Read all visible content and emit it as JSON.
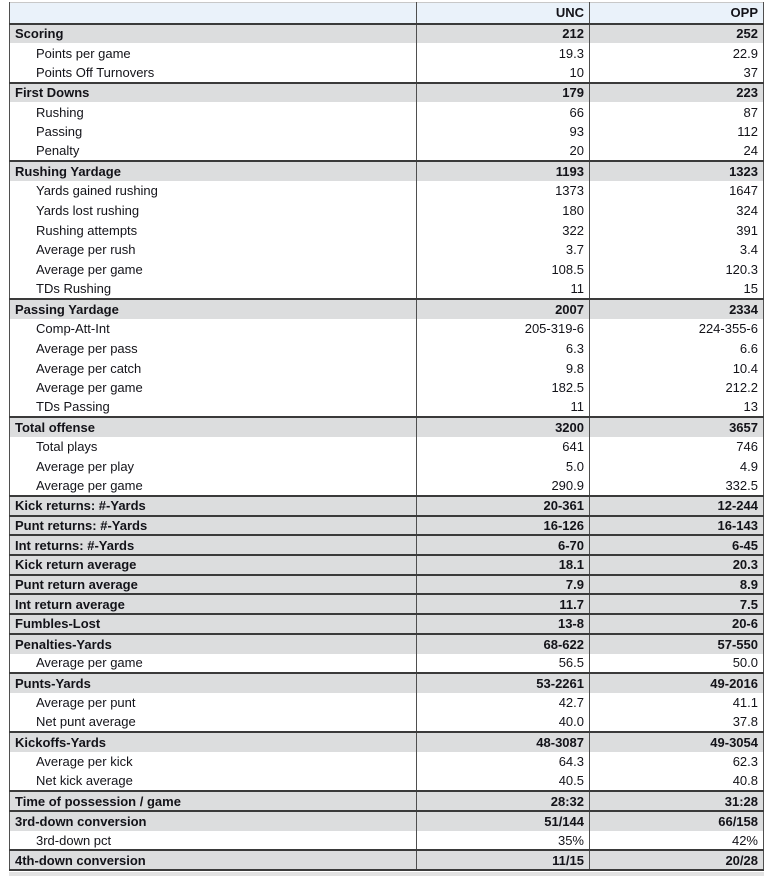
{
  "colors": {
    "header_bg": "#eaf2fa",
    "section_bg": "#dcddde",
    "row_bg": "#ffffff",
    "border_dark": "#3a3a3a",
    "border_mid": "#4f4f4f",
    "text_color": "#131319"
  },
  "chart_data": {
    "type": "table",
    "columns": [
      "",
      "UNC",
      "OPP"
    ],
    "rows": [
      {
        "label": "Scoring",
        "unc": "212",
        "opp": "252",
        "row": "section"
      },
      {
        "label": "Points per game",
        "unc": "19.3",
        "opp": "22.9",
        "row": "sub"
      },
      {
        "label": "Points Off Turnovers",
        "unc": "10",
        "opp": "37",
        "row": "sub"
      },
      {
        "label": "First Downs",
        "unc": "179",
        "opp": "223",
        "row": "section"
      },
      {
        "label": "Rushing",
        "unc": "66",
        "opp": "87",
        "row": "sub"
      },
      {
        "label": "Passing",
        "unc": "93",
        "opp": "112",
        "row": "sub"
      },
      {
        "label": "Penalty",
        "unc": "20",
        "opp": "24",
        "row": "sub"
      },
      {
        "label": "Rushing Yardage",
        "unc": "1193",
        "opp": "1323",
        "row": "section"
      },
      {
        "label": "Yards gained rushing",
        "unc": "1373",
        "opp": "1647",
        "row": "sub"
      },
      {
        "label": "Yards lost rushing",
        "unc": "180",
        "opp": "324",
        "row": "sub"
      },
      {
        "label": "Rushing attempts",
        "unc": "322",
        "opp": "391",
        "row": "sub"
      },
      {
        "label": "Average per rush",
        "unc": "3.7",
        "opp": "3.4",
        "row": "sub"
      },
      {
        "label": "Average per game",
        "unc": "108.5",
        "opp": "120.3",
        "row": "sub"
      },
      {
        "label": "TDs Rushing",
        "unc": "11",
        "opp": "15",
        "row": "sub"
      },
      {
        "label": "Passing Yardage",
        "unc": "2007",
        "opp": "2334",
        "row": "section"
      },
      {
        "label": "Comp-Att-Int",
        "unc": "205-319-6",
        "opp": "224-355-6",
        "row": "sub"
      },
      {
        "label": "Average per pass",
        "unc": "6.3",
        "opp": "6.6",
        "row": "sub"
      },
      {
        "label": "Average per catch",
        "unc": "9.8",
        "opp": "10.4",
        "row": "sub"
      },
      {
        "label": "Average per game",
        "unc": "182.5",
        "opp": "212.2",
        "row": "sub"
      },
      {
        "label": "TDs Passing",
        "unc": "11",
        "opp": "13",
        "row": "sub"
      },
      {
        "label": "Total offense",
        "unc": "3200",
        "opp": "3657",
        "row": "section"
      },
      {
        "label": "Total plays",
        "unc": "641",
        "opp": "746",
        "row": "sub"
      },
      {
        "label": "Average per play",
        "unc": "5.0",
        "opp": "4.9",
        "row": "sub"
      },
      {
        "label": "Average per game",
        "unc": "290.9",
        "opp": "332.5",
        "row": "sub"
      },
      {
        "label": "Kick returns: #-Yards",
        "unc": "20-361",
        "opp": "12-244",
        "row": "section"
      },
      {
        "label": "Punt returns: #-Yards",
        "unc": "16-126",
        "opp": "16-143",
        "row": "section"
      },
      {
        "label": "Int returns: #-Yards",
        "unc": "6-70",
        "opp": "6-45",
        "row": "section"
      },
      {
        "label": "Kick return average",
        "unc": "18.1",
        "opp": "20.3",
        "row": "section"
      },
      {
        "label": "Punt return average",
        "unc": "7.9",
        "opp": "8.9",
        "row": "section"
      },
      {
        "label": "Int return average",
        "unc": "11.7",
        "opp": "7.5",
        "row": "section"
      },
      {
        "label": "Fumbles-Lost",
        "unc": "13-8",
        "opp": "20-6",
        "row": "section"
      },
      {
        "label": "Penalties-Yards",
        "unc": "68-622",
        "opp": "57-550",
        "row": "section"
      },
      {
        "label": "Average per game",
        "unc": "56.5",
        "opp": "50.0",
        "row": "sub"
      },
      {
        "label": "Punts-Yards",
        "unc": "53-2261",
        "opp": "49-2016",
        "row": "section"
      },
      {
        "label": "Average per punt",
        "unc": "42.7",
        "opp": "41.1",
        "row": "sub"
      },
      {
        "label": "Net punt average",
        "unc": "40.0",
        "opp": "37.8",
        "row": "sub"
      },
      {
        "label": "Kickoffs-Yards",
        "unc": "48-3087",
        "opp": "49-3054",
        "row": "section"
      },
      {
        "label": "Average per kick",
        "unc": "64.3",
        "opp": "62.3",
        "row": "sub"
      },
      {
        "label": "Net kick average",
        "unc": "40.5",
        "opp": "40.8",
        "row": "sub"
      },
      {
        "label": "Time of possession / game",
        "unc": "28:32",
        "opp": "31:28",
        "row": "section"
      },
      {
        "label": "3rd-down conversion",
        "unc": "51/144",
        "opp": "66/158",
        "row": "section"
      },
      {
        "label": "3rd-down pct",
        "unc": "35%",
        "opp": "42%",
        "row": "sub"
      },
      {
        "label": "4th-down conversion",
        "unc": "11/15",
        "opp": "20/28",
        "row": "section"
      }
    ]
  }
}
